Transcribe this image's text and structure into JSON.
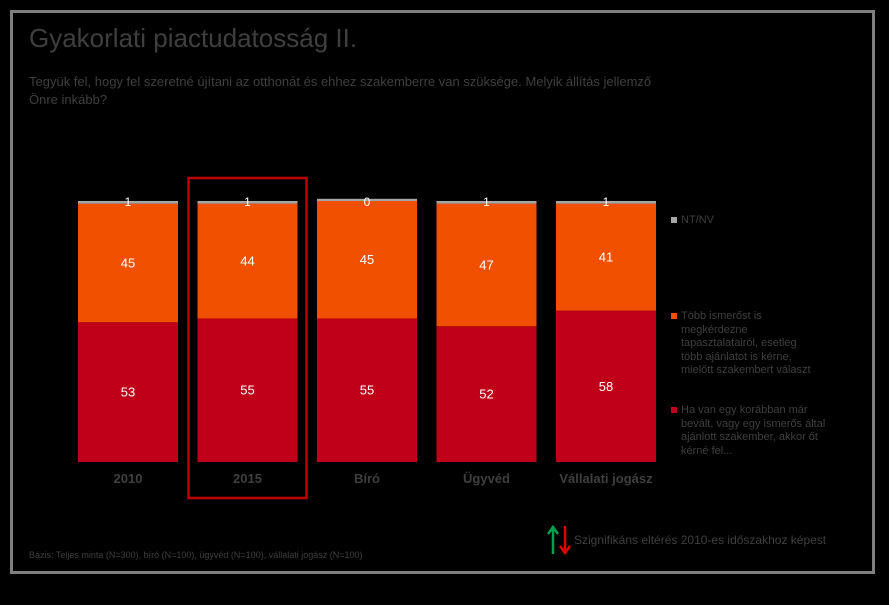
{
  "title": "Gyakorlati piactudatosság II.",
  "question": "Tegyük fel, hogy fel szeretné újítani az otthonát és ehhez szakemberre van szüksége. Melyik állítás jellemző Önre inkább?",
  "footnote": "Bázis: Teljes minta (N=300), bíró (N=100), ügyvéd (N=100), vállalati jogász (N=100)",
  "significance_note": "Szignifikáns eltérés 2010-es időszakhoz képest",
  "colors": {
    "nt_nv": "#a6a6a6",
    "tobb_ismerost": "#f05000",
    "ha_van": "#c00018",
    "highlight_box": "#c00000",
    "arrow_up": "#00a050",
    "arrow_down": "#e00000"
  },
  "chart_data": {
    "type": "bar",
    "stacked": true,
    "percent": true,
    "categories": [
      "2010",
      "2015",
      "Bíró",
      "Ügyvéd",
      "Vállalati jogász"
    ],
    "highlighted_category": "2015",
    "series": [
      {
        "name": "Ha van egy korábban már bevált, vagy egy ismerős által ajánlott szakember, akkor őt kérné fel...",
        "color_key": "ha_van",
        "values": [
          53,
          55,
          55,
          52,
          58
        ]
      },
      {
        "name": "Több ismerőst is megkérdezne tapasztalatairól, esetleg több ajánlatot is kérne, mielőtt szakembert választ",
        "color_key": "tobb_ismerost",
        "values": [
          45,
          44,
          45,
          47,
          41
        ]
      },
      {
        "name": "NT/NV",
        "color_key": "nt_nv",
        "values": [
          1,
          1,
          0,
          1,
          1
        ]
      }
    ],
    "legend_order": [
      "NT/NV",
      "Több ismerőst is megkérdezne tapasztalatairól, esetleg több ajánlatot is kérne, mielőtt szakembert választ",
      "Ha van egy korábban már bevált, vagy egy ismerős által ajánlott szakember, akkor őt kérné fel..."
    ],
    "legend_position": "right",
    "grid": false
  }
}
